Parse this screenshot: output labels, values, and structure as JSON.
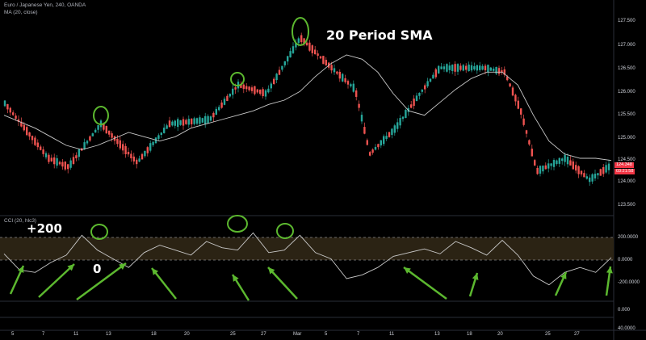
{
  "legend": {
    "symbol": "Euro / Japanese Yen, 240, OANDA",
    "ma": "MA (20, close)",
    "cci": "CCI (20, hlc3)"
  },
  "annotations": {
    "sma_title": "20 Period SMA",
    "plus200": "+200",
    "zero": "0"
  },
  "price_axis": {
    "ticks": [
      "127.500",
      "127.000",
      "126.500",
      "126.000",
      "125.500",
      "125.000",
      "124.500",
      "124.000",
      "123.500"
    ],
    "last_price": "124.348",
    "countdown": "03:21:58",
    "badge_color": "#f23645"
  },
  "cci_axis": {
    "ticks": [
      "200.0000",
      "0.0000",
      "-200.0000"
    ]
  },
  "extra_axis": {
    "ticks": [
      "0.000",
      "40.0000"
    ]
  },
  "time_axis": {
    "labels": [
      "5",
      "7",
      "11",
      "13",
      "18",
      "20",
      "25",
      "27",
      "Mar",
      "5",
      "7",
      "11",
      "13",
      "18",
      "20",
      "25",
      "27"
    ]
  },
  "colors": {
    "up": "#26a69a",
    "down": "#ef5350",
    "sma": "#c8c8c8",
    "cci_line": "#c8c8c8",
    "circle": "#5cb82f",
    "arrow": "#5cb82f",
    "band": "#2b2314"
  },
  "chart_data": {
    "type": "line",
    "title": "Euro / Japanese Yen, 240, OANDA",
    "ylim": [
      123.3,
      127.8
    ],
    "series": [
      {
        "name": "MA (20, close)",
        "values": [
          125.5,
          125.35,
          125.2,
          125.0,
          124.8,
          124.7,
          124.8,
          124.95,
          125.1,
          125.0,
          124.9,
          125.0,
          125.2,
          125.3,
          125.4,
          125.5,
          125.6,
          125.75,
          125.85,
          126.05,
          126.4,
          126.7,
          126.9,
          126.8,
          126.5,
          126.0,
          125.6,
          125.5,
          125.8,
          126.1,
          126.35,
          126.5,
          126.5,
          126.2,
          125.5,
          124.9,
          124.6,
          124.5,
          124.5,
          124.45
        ]
      },
      {
        "name": "CCI (20, hlc3)",
        "ylim": [
          -300,
          300
        ],
        "values": [
          50,
          -80,
          -100,
          -20,
          40,
          200,
          80,
          10,
          -60,
          60,
          120,
          80,
          40,
          150,
          100,
          80,
          220,
          60,
          80,
          200,
          60,
          10,
          -150,
          -120,
          -60,
          30,
          60,
          90,
          50,
          150,
          100,
          40,
          160,
          40,
          -130,
          -200,
          -100,
          -60,
          -100,
          20
        ]
      }
    ]
  }
}
